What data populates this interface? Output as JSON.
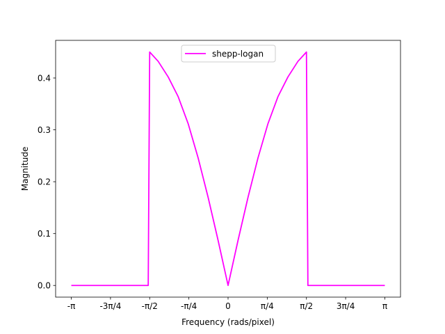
{
  "chart_data": {
    "type": "line",
    "xlabel": "Frequency (rads/pixel)",
    "ylabel": "Magnitude",
    "xlim": [
      -3.4558,
      3.4558
    ],
    "ylim": [
      -0.0225,
      0.4725
    ],
    "x_ticks": [
      -3.14159,
      -2.35619,
      -1.5708,
      -0.7854,
      0,
      0.7854,
      1.5708,
      2.35619,
      3.14159
    ],
    "x_tick_labels": [
      "-π",
      "-3π/4",
      "-π/2",
      "-π/4",
      "0",
      "π/4",
      "π/2",
      "3π/4",
      "π"
    ],
    "y_ticks": [
      0.0,
      0.1,
      0.2,
      0.3,
      0.4
    ],
    "y_tick_labels": [
      "0.0",
      "0.1",
      "0.2",
      "0.3",
      "0.4"
    ],
    "grid": false,
    "legend": {
      "location": "upper center",
      "entries": [
        "shepp-logan"
      ]
    },
    "series": [
      {
        "name": "shepp-logan",
        "color": "#ff00ff",
        "x": [
          -3.14159,
          -1.6,
          -1.5708,
          -1.4,
          -1.2,
          -1.0,
          -0.8,
          -0.6,
          -0.4,
          -0.2,
          0,
          0.2,
          0.4,
          0.6,
          0.8,
          1.0,
          1.2,
          1.4,
          1.5708,
          1.6,
          3.14159
        ],
        "y": [
          0.0,
          0.0,
          0.45,
          0.432,
          0.402,
          0.364,
          0.312,
          0.246,
          0.17,
          0.087,
          0.0,
          0.087,
          0.17,
          0.246,
          0.312,
          0.364,
          0.402,
          0.432,
          0.45,
          0.0,
          0.0
        ]
      }
    ]
  }
}
